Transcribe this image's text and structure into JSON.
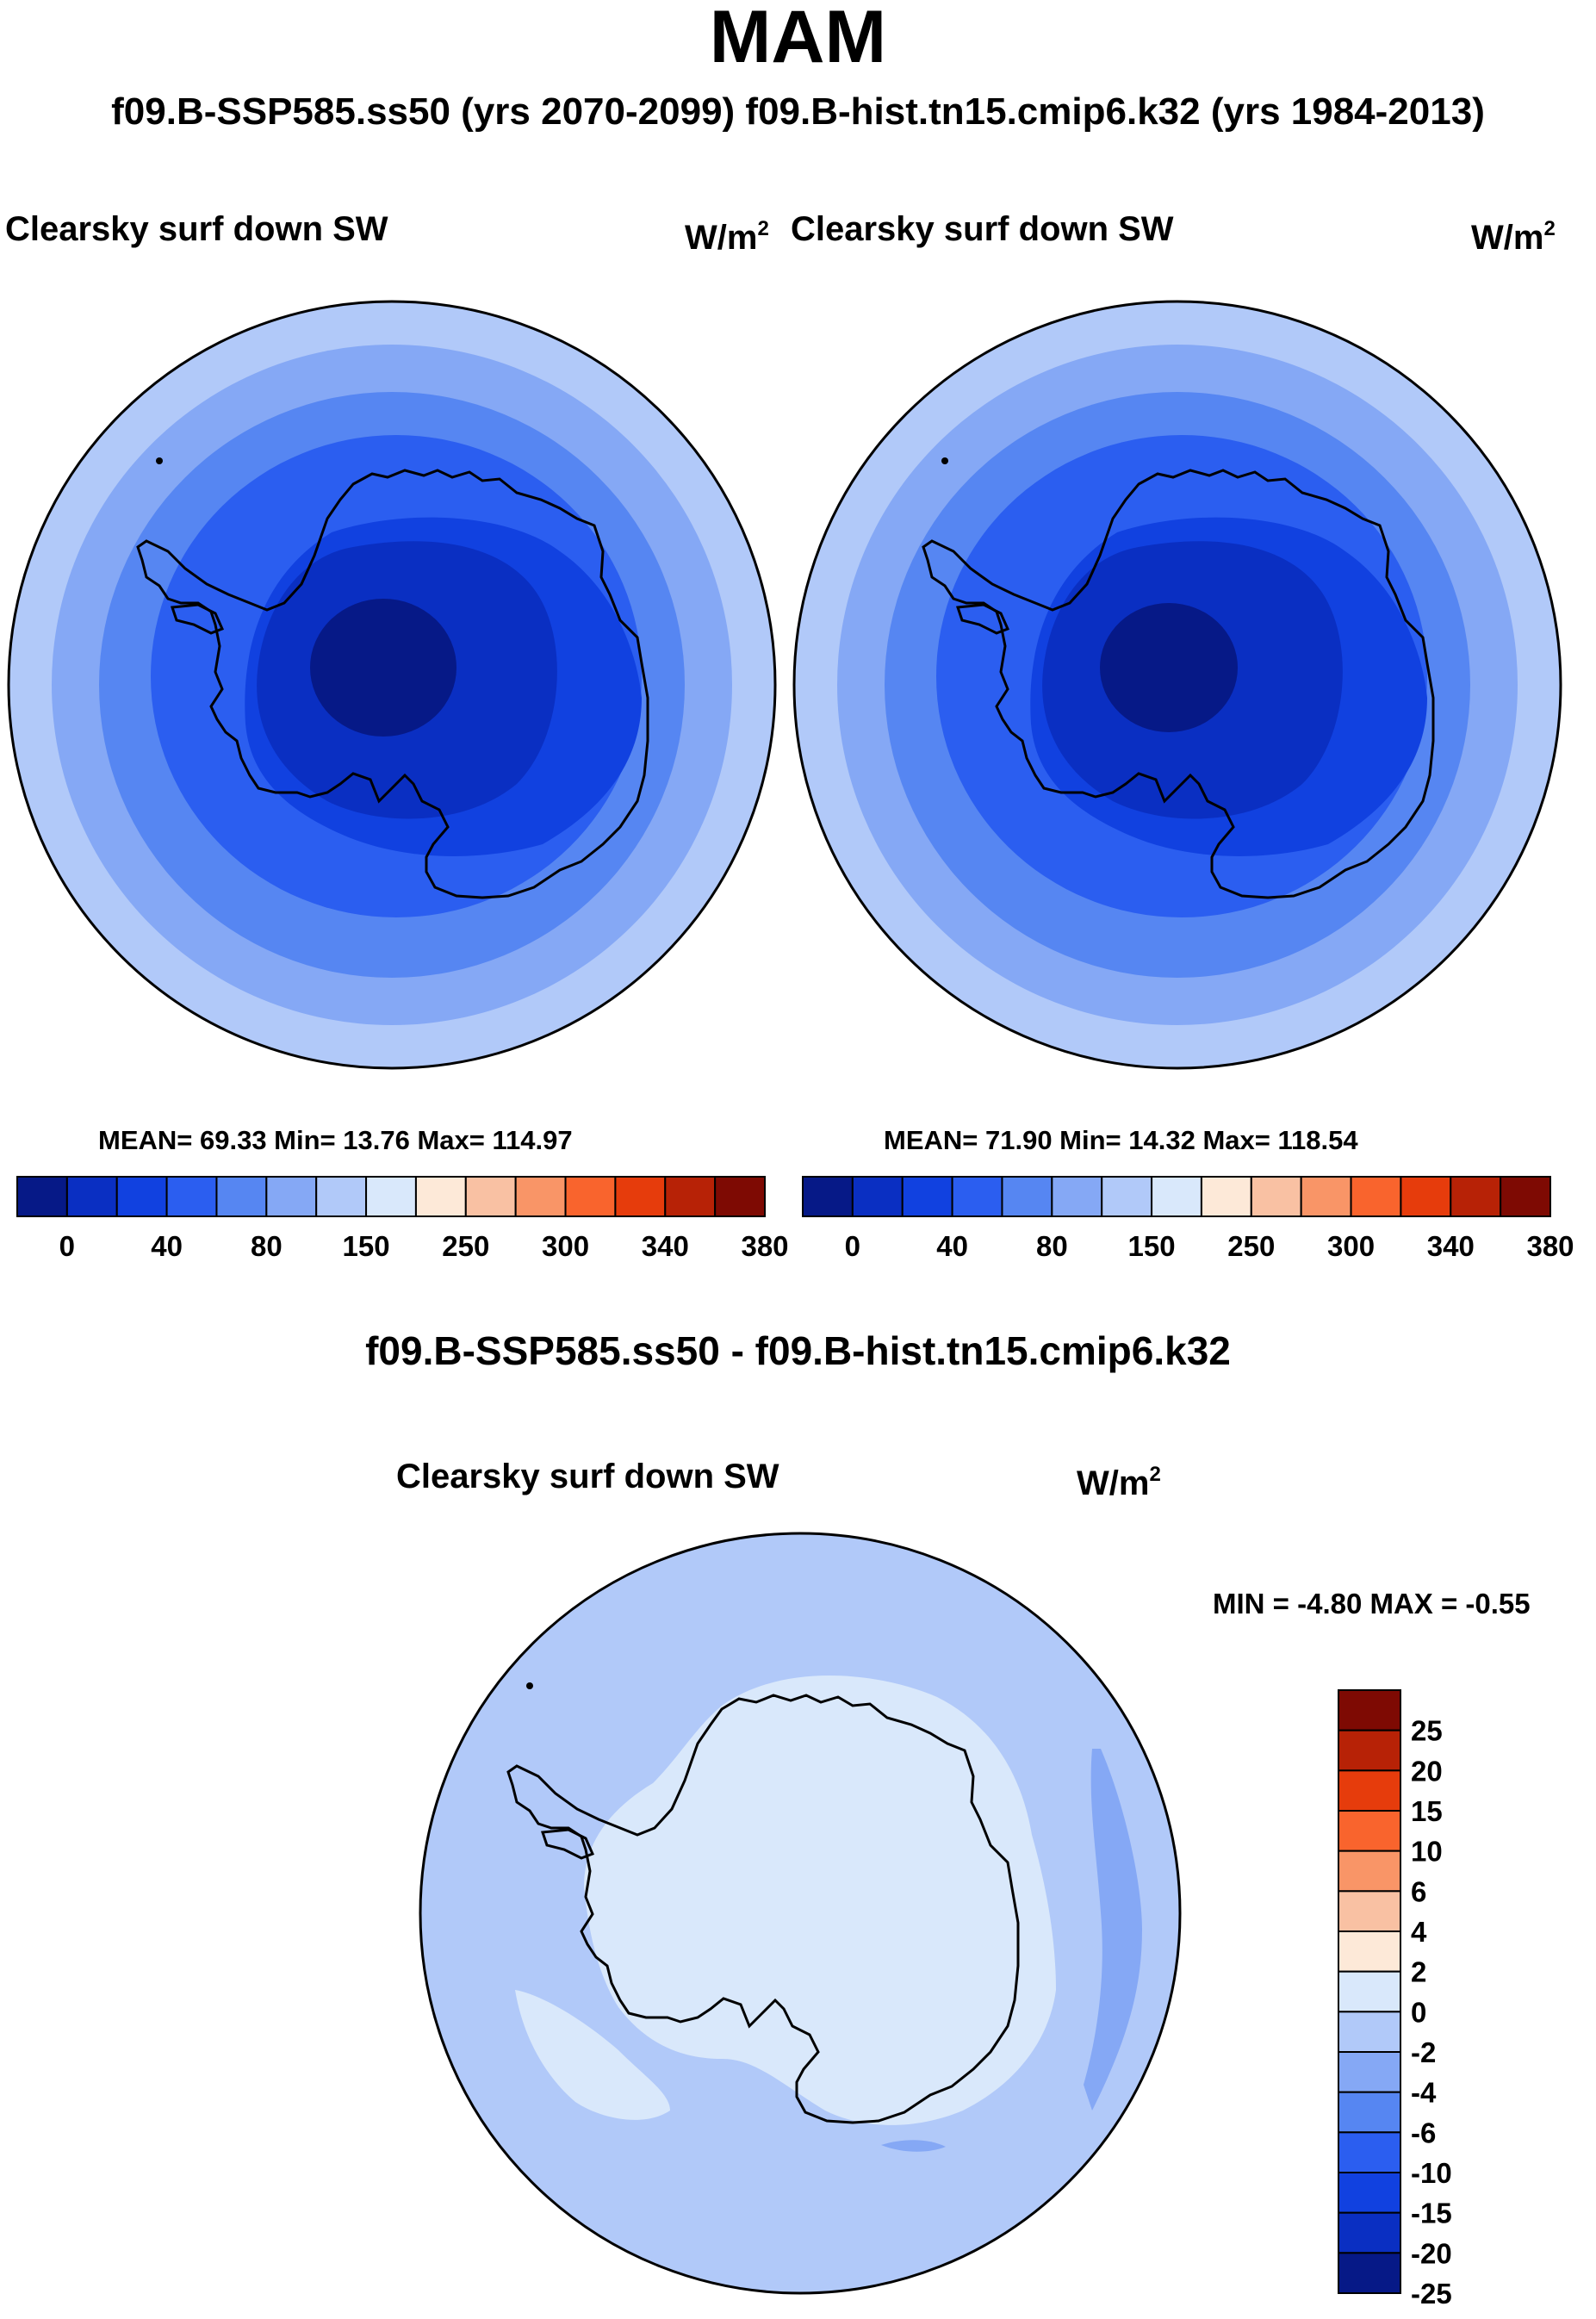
{
  "main_title": "MAM",
  "subtitle": "f09.B-SSP585.ss50 (yrs 2070-2099)  f09.B-hist.tn15.cmip6.k32 (yrs 1984-2013)",
  "panel_left": {
    "title": "Clearsky surf down SW",
    "unit_base": "W/m",
    "unit_exp": "2",
    "stats": "MEAN=  69.33  Min=  13.76  Max= 114.97"
  },
  "panel_right": {
    "title": "Clearsky surf down SW",
    "unit_base": "W/m",
    "unit_exp": "2",
    "stats": "MEAN=  71.90  Min=  14.32  Max= 118.54"
  },
  "abs_colorbar": {
    "colors": [
      "#061987",
      "#0a2fc2",
      "#1141e0",
      "#2b5ef0",
      "#5686f2",
      "#85a8f5",
      "#b1c9f9",
      "#d9e8fb",
      "#fde9d8",
      "#f9c1a3",
      "#f99567",
      "#f9642d",
      "#e63c0c",
      "#b72206",
      "#7e0a03"
    ],
    "labels": [
      "0",
      "40",
      "80",
      "150",
      "250",
      "300",
      "340",
      "380"
    ]
  },
  "diff_title": "f09.B-SSP585.ss50 - f09.B-hist.tn15.cmip6.k32",
  "panel_diff": {
    "title": "Clearsky surf down SW",
    "unit_base": "W/m",
    "unit_exp": "2",
    "minmax": "MIN =  -4.80 MAX =  -0.55"
  },
  "diff_colorbar": {
    "colors": [
      "#7e0a03",
      "#b72206",
      "#e63c0c",
      "#f9642d",
      "#f99567",
      "#f9c1a3",
      "#fde9d8",
      "#d9e8fb",
      "#b1c9f9",
      "#85a8f5",
      "#5686f2",
      "#2b5ef0",
      "#1141e0",
      "#0a2fc2",
      "#061987"
    ],
    "labels": [
      "25",
      "20",
      "15",
      "10",
      "6",
      "4",
      "2",
      "0",
      "-2",
      "-4",
      "-6",
      "-10",
      "-15",
      "-20",
      "-25"
    ]
  },
  "map_colors": {
    "ring1": "#b1c9f9",
    "ring2": "#85a8f5",
    "ring3": "#5686f2",
    "ring4": "#2b5ef0",
    "ring5": "#1141e0",
    "ring6": "#0a2fc2",
    "ring7": "#061987",
    "diff_ocean": "#b1c9f9",
    "diff_land": "#d9e8fb",
    "diff_strip": "#85a8f5"
  }
}
